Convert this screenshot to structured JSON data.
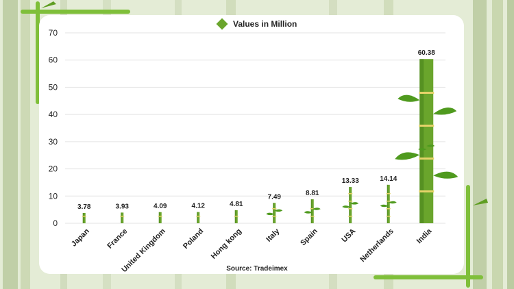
{
  "colors": {
    "bar": "#6aa52c",
    "bar_dark": "#3f7a16",
    "node": "#e6d36a",
    "leaf": "#4f9a1e",
    "grid": "#e3e3e3",
    "background_bamboo": "#b9c9a0"
  },
  "legend": {
    "label": "Values in Million",
    "icon": "diamond-icon"
  },
  "source": "Source: Tradeimex",
  "chart_data": {
    "type": "bar",
    "title": "",
    "xlabel": "",
    "ylabel": "",
    "ylim": [
      0,
      70
    ],
    "yticks": [
      0,
      10,
      20,
      30,
      40,
      50,
      60,
      70
    ],
    "grid": true,
    "legend_position": "top-center",
    "categories": [
      "Japan",
      "France",
      "United Kingdom",
      "Poland",
      "Hong kong",
      "Italy",
      "Spain",
      "USA",
      "Netherlands",
      "India"
    ],
    "series": [
      {
        "name": "Values in Million",
        "values": [
          3.78,
          3.93,
          4.09,
          4.12,
          4.81,
          7.49,
          8.81,
          13.33,
          14.14,
          60.38
        ],
        "labels": [
          "3.78",
          "3.93",
          "4.09",
          "4.12",
          "4.81",
          "7.49",
          "8.81",
          "13.33",
          "14.14",
          "60.38"
        ]
      }
    ]
  }
}
